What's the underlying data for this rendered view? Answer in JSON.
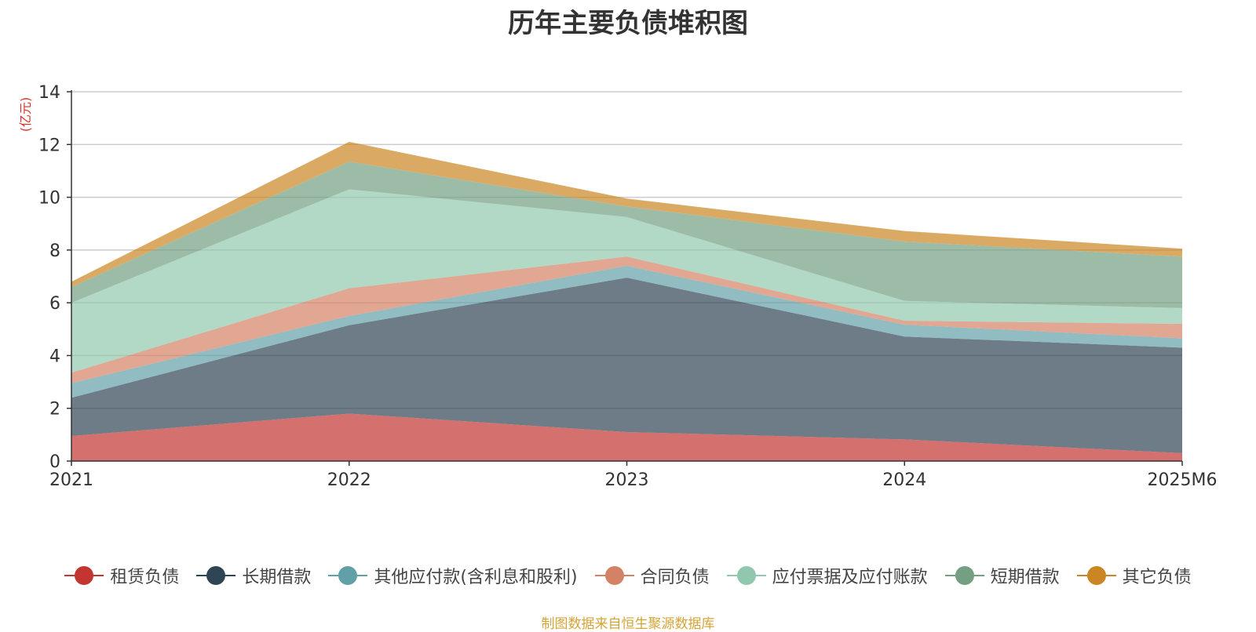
{
  "chart_data": {
    "type": "area",
    "stacked": true,
    "title": "历年主要负债堆积图",
    "ylabel": "(亿元)",
    "xlabel": "",
    "categories": [
      "2021",
      "2022",
      "2023",
      "2024",
      "2025M6"
    ],
    "ylim": [
      0,
      14
    ],
    "yticks": [
      0,
      2,
      4,
      6,
      8,
      10,
      12,
      14
    ],
    "grid": true,
    "legend_position": "bottom",
    "series": [
      {
        "name": "租赁负债",
        "color": "#c23531",
        "values": [
          0.95,
          1.8,
          1.1,
          0.82,
          0.3
        ]
      },
      {
        "name": "长期借款",
        "color": "#2f4554",
        "values": [
          1.45,
          3.35,
          5.85,
          3.9,
          4.0
        ]
      },
      {
        "name": "其他应付款(含利息和股利)",
        "color": "#61a0a8",
        "values": [
          0.55,
          0.35,
          0.45,
          0.45,
          0.35
        ]
      },
      {
        "name": "合同负债",
        "color": "#d48265",
        "values": [
          0.4,
          1.05,
          0.35,
          0.15,
          0.55
        ]
      },
      {
        "name": "应付票据及应付账款",
        "color": "#91c7ae",
        "values": [
          2.65,
          3.75,
          1.5,
          0.75,
          0.6
        ]
      },
      {
        "name": "短期借款",
        "color": "#749f83",
        "values": [
          0.6,
          1.05,
          0.4,
          2.25,
          1.95
        ]
      },
      {
        "name": "其它负债",
        "color": "#ca8622",
        "values": [
          0.2,
          0.75,
          0.3,
          0.4,
          0.3
        ]
      }
    ]
  },
  "footer": {
    "source": "制图数据来自恒生聚源数据库"
  }
}
